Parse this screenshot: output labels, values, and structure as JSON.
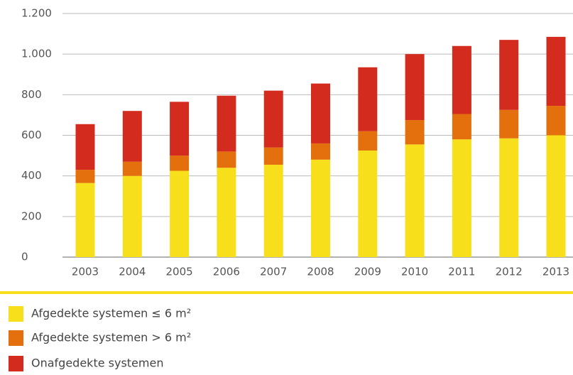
{
  "chart_data": {
    "type": "stacked_bar",
    "categories": [
      "2003",
      "2004",
      "2005",
      "2006",
      "2007",
      "2008",
      "2009",
      "2010",
      "2011",
      "2012",
      "2013"
    ],
    "series": [
      {
        "name": "Afgedekte systemen ≤ 6 m²",
        "color": "#f8df1c",
        "values": [
          365,
          400,
          425,
          440,
          455,
          480,
          525,
          555,
          580,
          585,
          600
        ]
      },
      {
        "name": "Afgedekte systemen > 6 m²",
        "color": "#e3700c",
        "values": [
          65,
          70,
          75,
          80,
          85,
          80,
          95,
          120,
          125,
          140,
          145
        ]
      },
      {
        "name": "Onafgedekte systemen",
        "color": "#d42b1f",
        "values": [
          225,
          250,
          265,
          275,
          280,
          295,
          315,
          325,
          335,
          345,
          340
        ]
      }
    ],
    "ylim": [
      0,
      1200
    ],
    "yticks": [
      0,
      200,
      400,
      600,
      800,
      {
        "value": 1000,
        "label": "1.000"
      },
      {
        "value": 1200,
        "label": "1.200"
      }
    ],
    "grid": true
  }
}
